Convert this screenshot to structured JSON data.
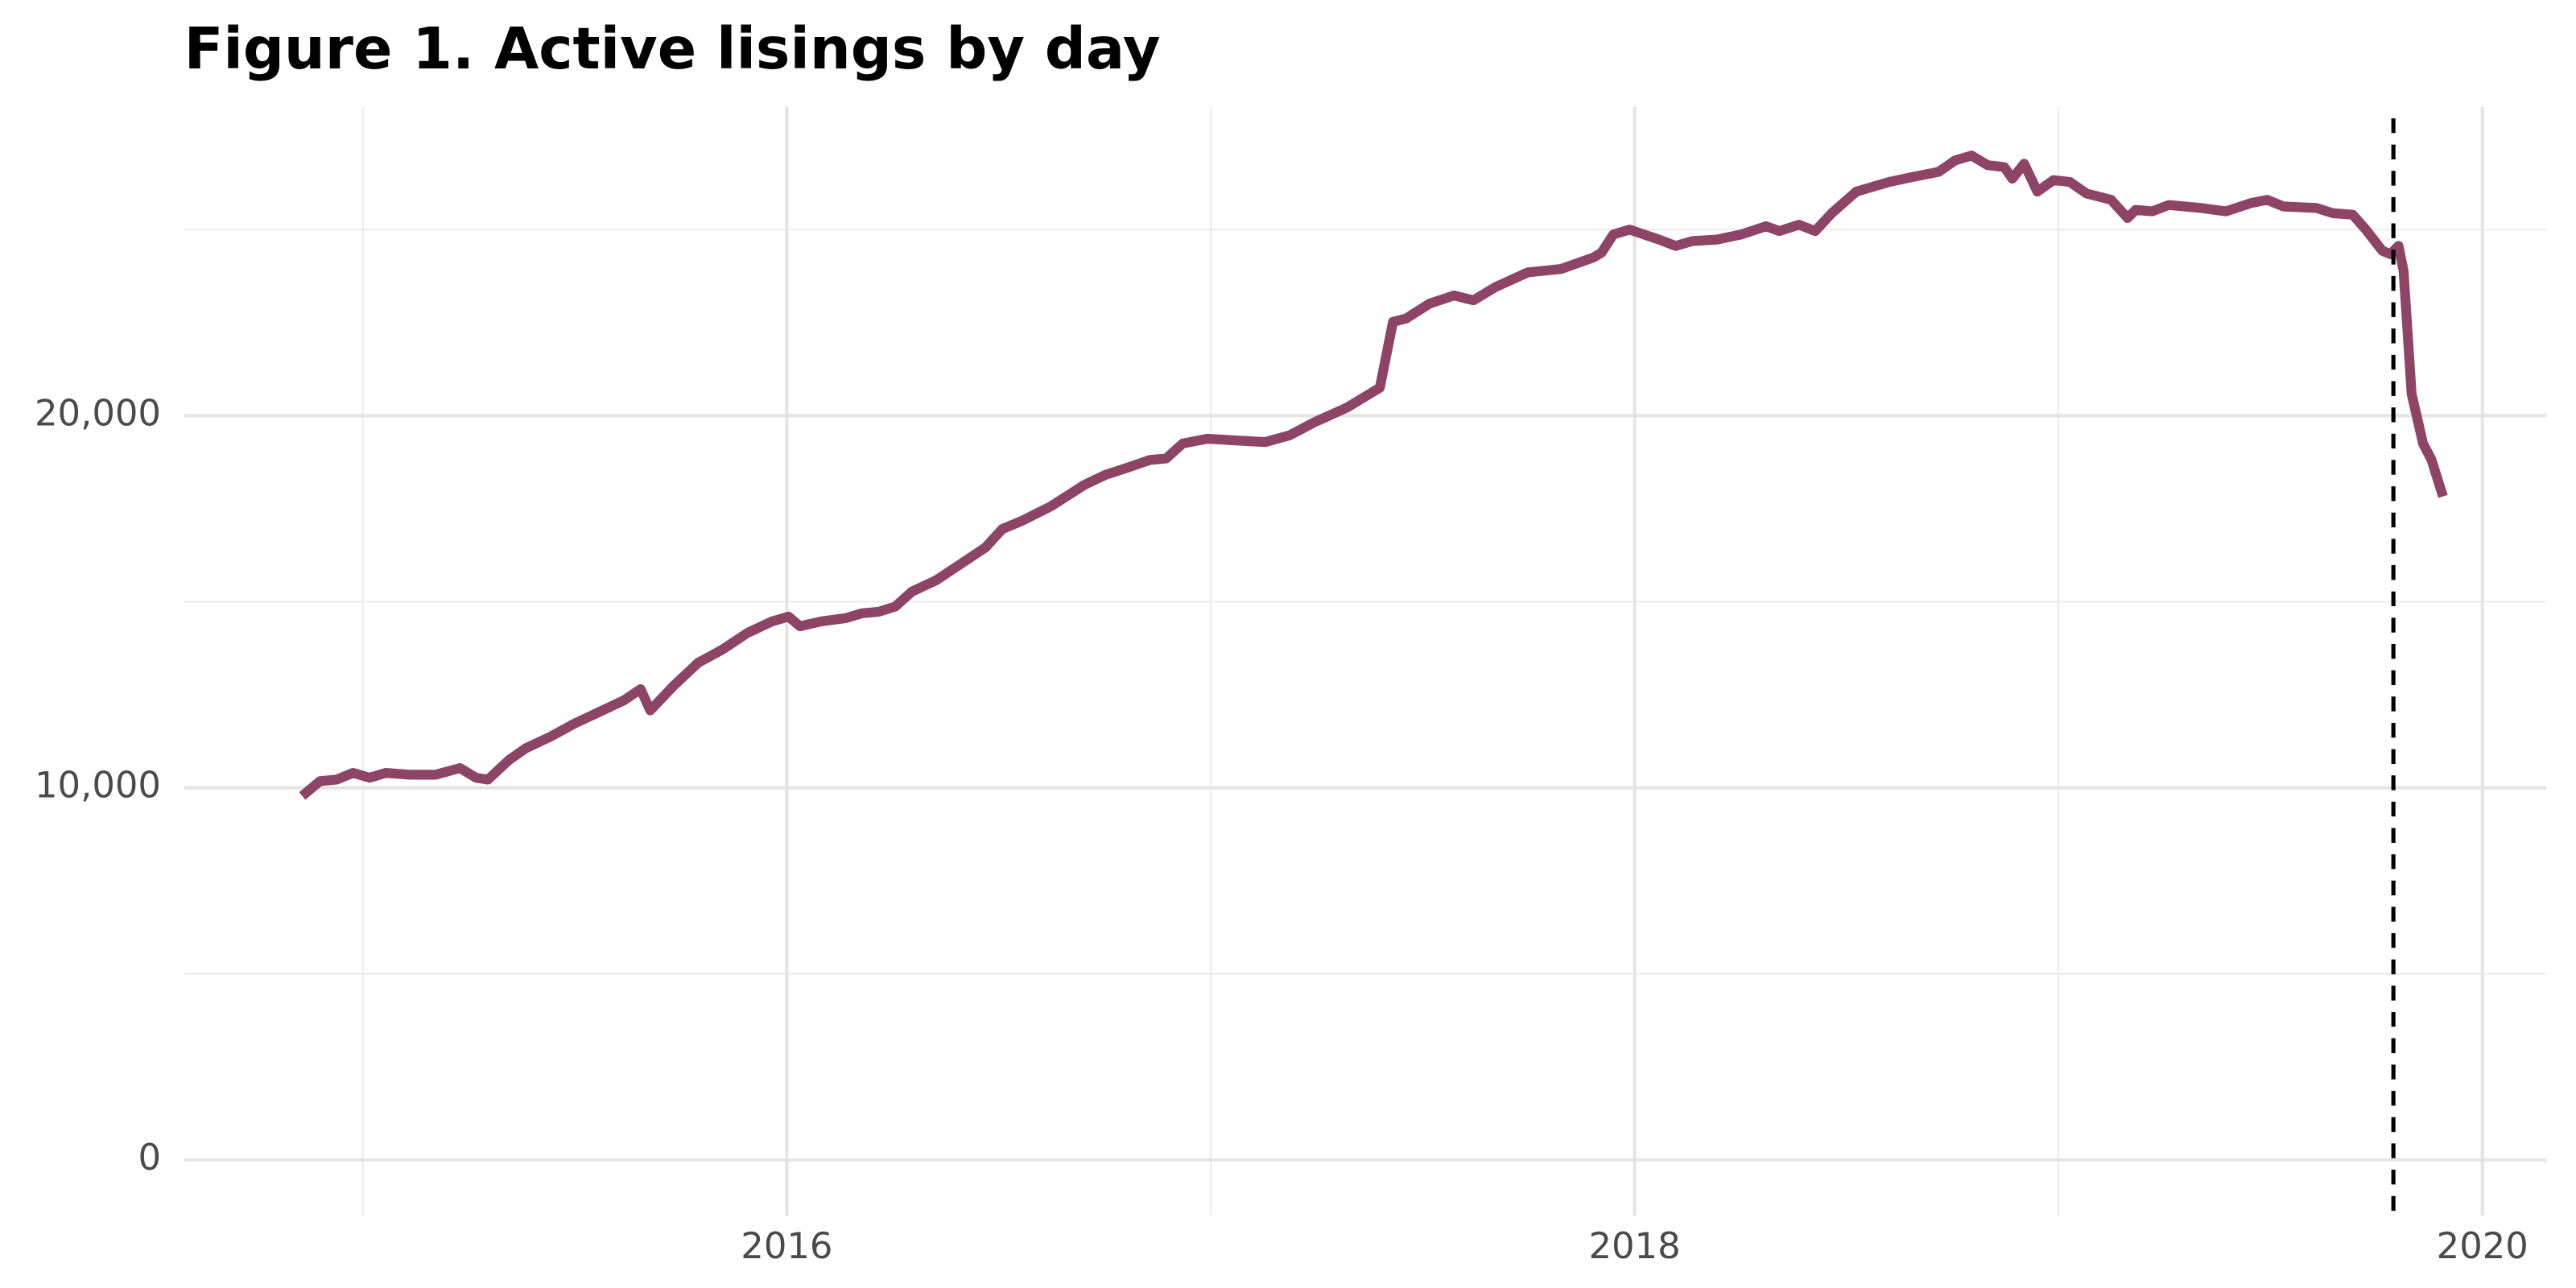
{
  "chart_data": {
    "type": "line",
    "title": "Figure 1. Active lisings by day",
    "x": [
      2014.857,
      2014.899,
      2014.938,
      2014.977,
      2015.016,
      2015.054,
      2015.112,
      2015.171,
      2015.229,
      2015.267,
      2015.295,
      2015.345,
      2015.384,
      2015.442,
      2015.5,
      2015.558,
      2015.616,
      2015.655,
      2015.678,
      2015.733,
      2015.791,
      2015.849,
      2015.907,
      2015.965,
      2016.004,
      2016.031,
      2016.081,
      2016.14,
      2016.178,
      2016.217,
      2016.256,
      2016.295,
      2016.353,
      2016.411,
      2016.469,
      2016.508,
      2016.554,
      2016.624,
      2016.702,
      2016.752,
      2016.798,
      2016.857,
      2016.895,
      2016.934,
      2016.992,
      2017.05,
      2017.128,
      2017.186,
      2017.244,
      2017.322,
      2017.399,
      2017.43,
      2017.461,
      2017.516,
      2017.574,
      2017.62,
      2017.671,
      2017.748,
      2017.826,
      2017.903,
      2017.922,
      2017.95,
      2017.988,
      2018.058,
      2018.097,
      2018.136,
      2018.194,
      2018.252,
      2018.31,
      2018.341,
      2018.388,
      2018.426,
      2018.465,
      2018.523,
      2018.601,
      2018.659,
      2018.717,
      2018.756,
      2018.795,
      2018.833,
      2018.872,
      2018.891,
      2018.919,
      2018.95,
      2018.988,
      2019.027,
      2019.066,
      2019.124,
      2019.163,
      2019.182,
      2019.221,
      2019.26,
      2019.337,
      2019.395,
      2019.453,
      2019.492,
      2019.531,
      2019.609,
      2019.647,
      2019.694,
      2019.725,
      2019.764,
      2019.783,
      2019.802,
      2019.814,
      2019.833,
      2019.86,
      2019.88,
      2019.907
    ],
    "values": [
      9780,
      10180,
      10220,
      10400,
      10270,
      10400,
      10350,
      10350,
      10530,
      10270,
      10220,
      10750,
      11060,
      11370,
      11730,
      12040,
      12350,
      12650,
      12080,
      12740,
      13360,
      13720,
      14160,
      14470,
      14600,
      14340,
      14470,
      14560,
      14690,
      14730,
      14870,
      15270,
      15580,
      16020,
      16460,
      16950,
      17170,
      17570,
      18140,
      18410,
      18580,
      18810,
      18850,
      19250,
      19380,
      19340,
      19290,
      19470,
      19820,
      20220,
      20750,
      22520,
      22610,
      23010,
      23230,
      23100,
      23450,
      23850,
      23940,
      24250,
      24380,
      24870,
      25000,
      24730,
      24560,
      24690,
      24730,
      24870,
      25090,
      24960,
      25130,
      24960,
      25440,
      26020,
      26280,
      26420,
      26550,
      26860,
      26990,
      26730,
      26680,
      26370,
      26770,
      26020,
      26330,
      26280,
      25970,
      25800,
      25310,
      25530,
      25490,
      25660,
      25580,
      25490,
      25710,
      25800,
      25620,
      25580,
      25440,
      25400,
      25000,
      24430,
      24340,
      24560,
      23890,
      20580,
      19250,
      18810,
      17830
    ],
    "color": "#8e4466",
    "xlim": [
      2014.578,
      2020.151
    ],
    "xticks": [
      2016,
      2018,
      2020
    ],
    "xminor": [
      2015,
      2017,
      2019
    ],
    "ylim": [
      -1500,
      28300
    ],
    "yticks": [
      0,
      {
        "value": 10000,
        "label": "10,000"
      },
      {
        "value": 20000,
        "label": "20,000"
      }
    ],
    "yminor": [
      5000,
      15000,
      25000
    ],
    "vline": 2019.79,
    "grid": true
  }
}
